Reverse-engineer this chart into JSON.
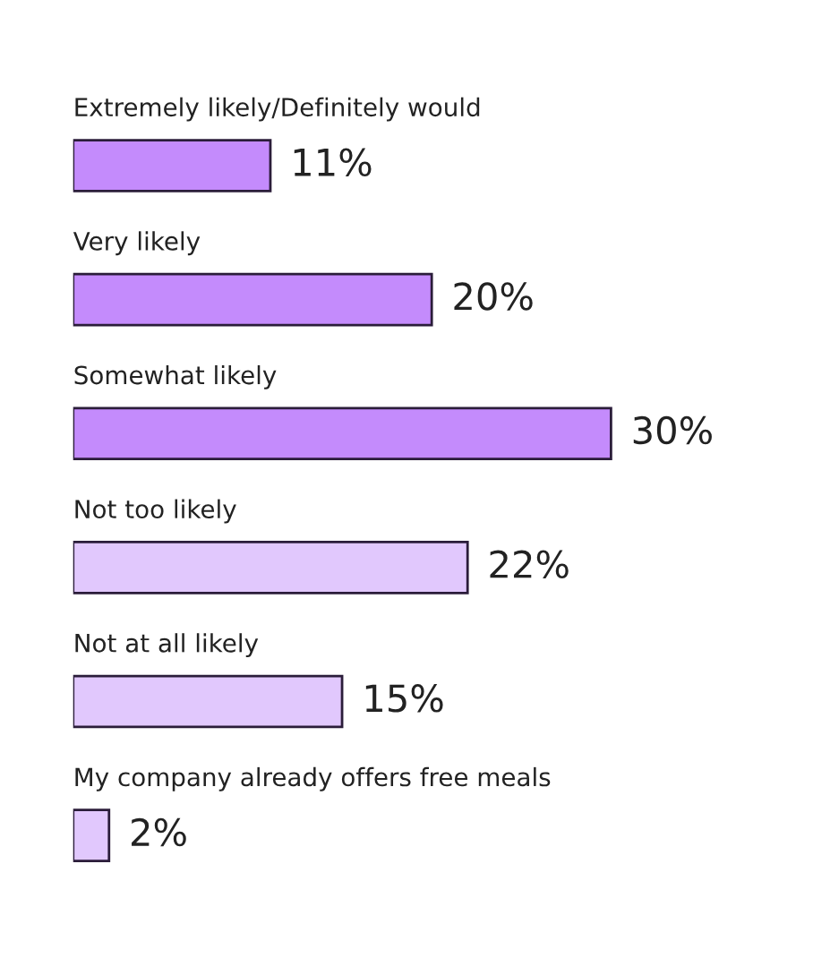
{
  "chart_data": {
    "type": "bar",
    "orientation": "horizontal",
    "categories": [
      "Extremely likely/Definitely would",
      "Very likely",
      "Somewhat likely",
      "Not too likely",
      "Not at all likely",
      "My company already offers free meals"
    ],
    "values": [
      11,
      20,
      30,
      22,
      15,
      2
    ],
    "value_labels": [
      "11%",
      "20%",
      "30%",
      "22%",
      "15%",
      "2%"
    ],
    "colors": [
      "#c48bfc",
      "#c48bfc",
      "#c48bfc",
      "#e1c8fd",
      "#e1c8fd",
      "#e1c8fd"
    ],
    "legend": false,
    "tick_labels": false
  }
}
